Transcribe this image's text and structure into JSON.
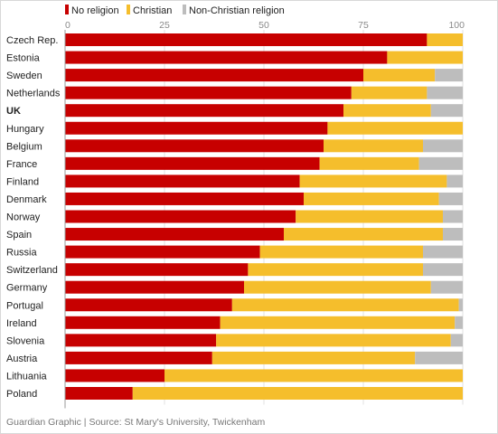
{
  "legend": [
    {
      "label": "No religion",
      "color": "#c70000"
    },
    {
      "label": "Christian",
      "color": "#f5be2c"
    },
    {
      "label": "Non-Christian religion",
      "color": "#bdbdbd"
    }
  ],
  "source": "Guardian Graphic | Source: St Mary's University, Twickenham",
  "chart_data": {
    "type": "bar",
    "orientation": "horizontal",
    "stacked": true,
    "xlim": [
      0,
      100
    ],
    "xticks": [
      0,
      25,
      50,
      75,
      100
    ],
    "ticks_position": "top",
    "grid": true,
    "legend_position": "top",
    "highlighted_category": "UK",
    "categories": [
      "Czech Rep.",
      "Estonia",
      "Sweden",
      "Netherlands",
      "UK",
      "Hungary",
      "Belgium",
      "France",
      "Finland",
      "Denmark",
      "Norway",
      "Spain",
      "Russia",
      "Switzerland",
      "Germany",
      "Portugal",
      "Ireland",
      "Slovenia",
      "Austria",
      "Lithuania",
      "Poland"
    ],
    "series": [
      {
        "name": "No religion",
        "color": "#c70000",
        "values": [
          91,
          81,
          75,
          72,
          70,
          66,
          65,
          64,
          59,
          60,
          58,
          55,
          49,
          46,
          45,
          42,
          39,
          38,
          37,
          25,
          17
        ]
      },
      {
        "name": "Christian",
        "color": "#f5be2c",
        "values": [
          9,
          19,
          18,
          19,
          22,
          34,
          25,
          25,
          37,
          34,
          37,
          40,
          41,
          44,
          47,
          57,
          59,
          59,
          51,
          75,
          83
        ]
      },
      {
        "name": "Non-Christian religion",
        "color": "#bdbdbd",
        "values": [
          0,
          0,
          7,
          9,
          8,
          0,
          10,
          11,
          4,
          6,
          5,
          5,
          10,
          10,
          8,
          1,
          2,
          3,
          12,
          0,
          0
        ]
      }
    ]
  }
}
